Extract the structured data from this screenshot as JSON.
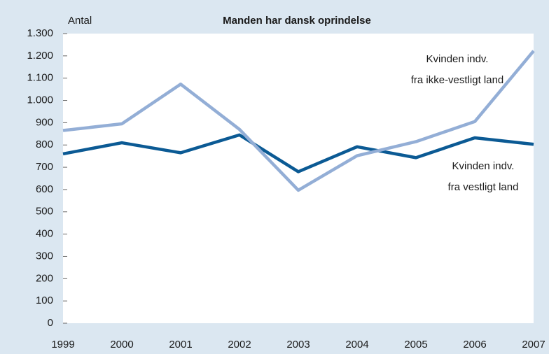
{
  "chart_data": {
    "type": "line",
    "title": "Manden har dansk oprindelse",
    "y_label": "Antal",
    "x": [
      1999,
      2000,
      2001,
      2002,
      2003,
      2004,
      2005,
      2006,
      2007
    ],
    "xlim": [
      1999,
      2007
    ],
    "xticks": [
      1999,
      2000,
      2001,
      2002,
      2003,
      2004,
      2005,
      2006,
      2007
    ],
    "ylim": [
      0,
      1300
    ],
    "yticks": [
      0,
      100,
      200,
      300,
      400,
      500,
      600,
      700,
      800,
      900,
      {
        "value": 1000,
        "label": "1.000"
      },
      {
        "value": 1100,
        "label": "1.100"
      },
      {
        "value": 1200,
        "label": "1.200"
      },
      {
        "value": 1300,
        "label": "1.300"
      }
    ],
    "grid": false,
    "series": [
      {
        "name": "Kvinden indv. fra vestligt land",
        "color": "#0b5a94",
        "values": [
          760,
          810,
          765,
          845,
          680,
          792,
          743,
          832,
          803
        ]
      },
      {
        "name": "Kvinden indv. fra ikke-vestligt land",
        "color": "#93aed6",
        "values": [
          865,
          895,
          1073,
          870,
          597,
          752,
          815,
          905,
          1222
        ]
      }
    ],
    "annotations": [
      {
        "lines": [
          "Kvinden indv.",
          "fra ikke-vestligt land"
        ]
      },
      {
        "lines": [
          "Kvinden indv.",
          "fra vestligt land"
        ]
      }
    ]
  }
}
